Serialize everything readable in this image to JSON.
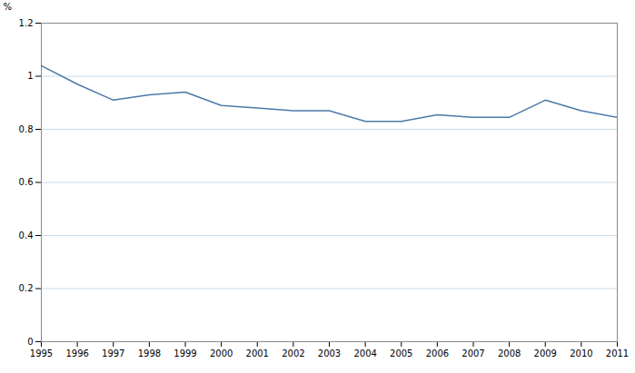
{
  "chart_data": {
    "type": "line",
    "x": [
      1995,
      1996,
      1997,
      1998,
      1999,
      2000,
      2001,
      2002,
      2003,
      2004,
      2005,
      2006,
      2007,
      2008,
      2009,
      2010,
      2011
    ],
    "values": [
      1.04,
      0.97,
      0.91,
      0.93,
      0.94,
      0.89,
      0.88,
      0.87,
      0.87,
      0.83,
      0.83,
      0.855,
      0.845,
      0.845,
      0.91,
      0.87,
      0.845
    ],
    "color": "#4a7aaa",
    "ylabel": "%",
    "xlim": [
      1995,
      2011
    ],
    "xticks": [
      1995,
      1996,
      1997,
      1998,
      1999,
      2000,
      2001,
      2002,
      2003,
      2004,
      2005,
      2006,
      2007,
      2008,
      2009,
      2010,
      2011
    ],
    "ylim": [
      0,
      1.2
    ],
    "yticks": [
      0,
      0.2,
      0.4,
      0.6,
      0.8,
      1,
      1.2
    ],
    "grid": true
  }
}
